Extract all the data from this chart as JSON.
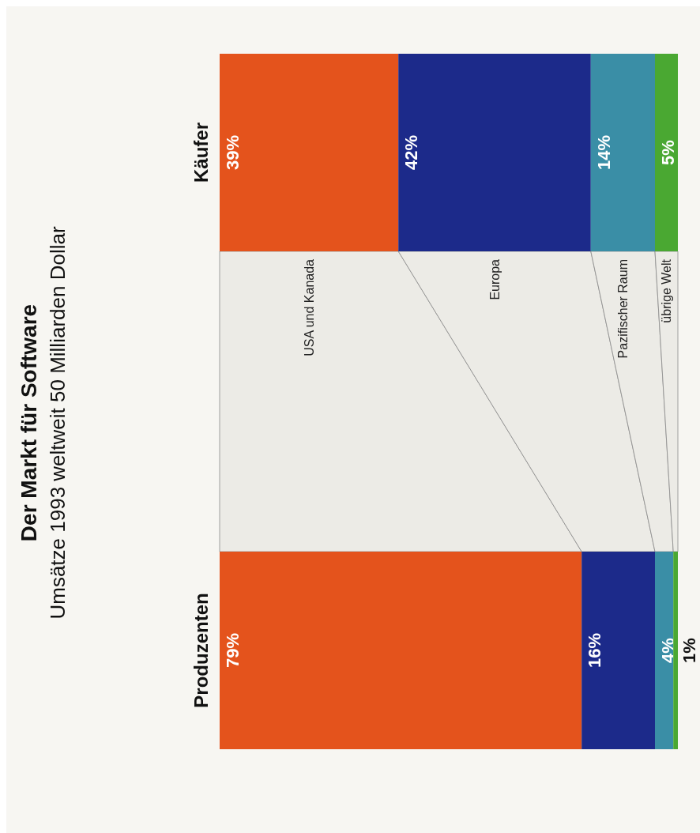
{
  "chart_data": {
    "type": "bar",
    "orientation": "horizontal",
    "title": "Der Markt für Software",
    "subtitle": "Umsätze 1993 weltweit 50 Milliarden Dollar",
    "categories": [
      "Käufer",
      "Produzenten"
    ],
    "stacked": true,
    "series": [
      {
        "name": "USA und Kanada",
        "color": "#e4531c",
        "values": [
          39,
          79
        ],
        "value_labels": [
          "39%",
          "79%"
        ]
      },
      {
        "name": "Europa",
        "color": "#1c2a8a",
        "values": [
          42,
          16
        ],
        "value_labels": [
          "42%",
          "16%"
        ]
      },
      {
        "name": "Pazifischer Raum",
        "color": "#3a8ea6",
        "values": [
          14,
          4
        ],
        "value_labels": [
          "14%",
          "4%"
        ]
      },
      {
        "name": "übrige Welt",
        "color": "#4aa832",
        "values": [
          5,
          1
        ],
        "value_labels": [
          "5%",
          "1%"
        ]
      }
    ]
  }
}
